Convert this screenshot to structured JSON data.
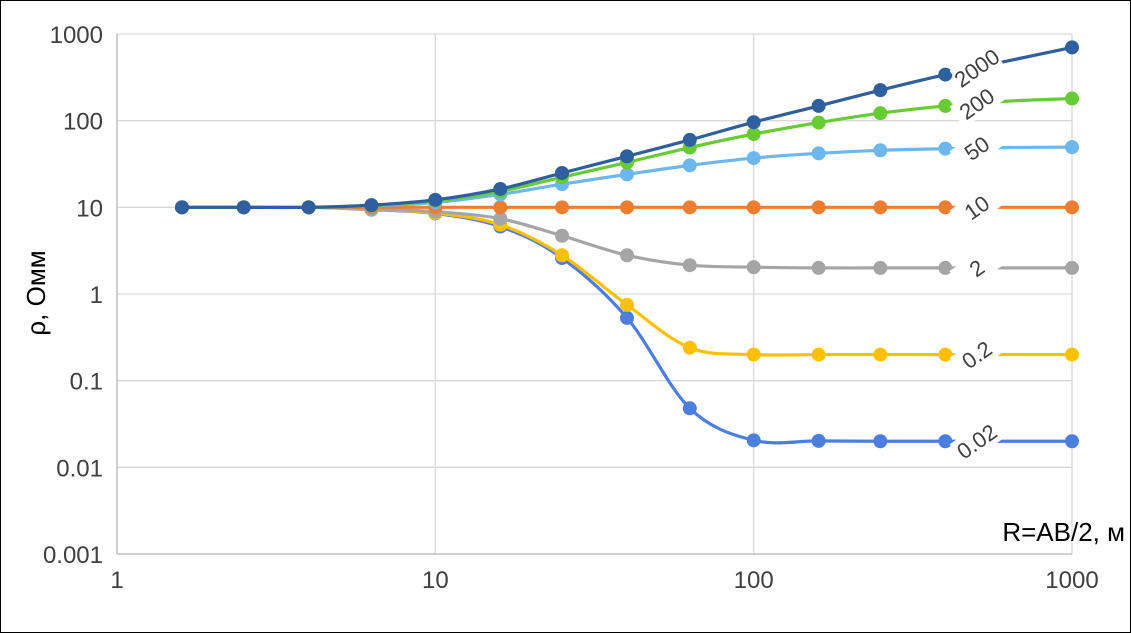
{
  "chart_data": {
    "type": "line",
    "x_scale": "log",
    "y_scale": "log",
    "xlim": [
      1,
      1000
    ],
    "ylim": [
      0.001,
      1000
    ],
    "x_ticks": [
      "1",
      "10",
      "100",
      "1000"
    ],
    "y_ticks": [
      "1000",
      "100",
      "10",
      "1",
      "0.1",
      "0.01",
      "0.001"
    ],
    "xlabel": "R=AB/2, м",
    "ylabel": "ρ, Омм",
    "grid": true,
    "legend": "inline labels at right end of each curve",
    "x": [
      1.6,
      2.5,
      4,
      6.3,
      10,
      16,
      25,
      40,
      63,
      100,
      160,
      250,
      400,
      630,
      1000
    ],
    "series": [
      {
        "name": "2000",
        "color": "#2e5f9e",
        "values": [
          10,
          10,
          10,
          10.6,
          12.2,
          16.3,
          24.9,
          38.8,
          60,
          96,
          148,
          225,
          340,
          490,
          700
        ]
      },
      {
        "name": "200",
        "color": "#66cc33",
        "values": [
          10,
          10,
          10,
          10.5,
          11.8,
          15.3,
          22.3,
          33,
          49,
          70,
          95,
          122,
          148,
          168,
          180
        ]
      },
      {
        "name": "50",
        "color": "#6cb7ee",
        "values": [
          10,
          10,
          10,
          10.4,
          11.4,
          14.1,
          18.5,
          24,
          30.5,
          37,
          42,
          45.5,
          47.5,
          49,
          49.5
        ]
      },
      {
        "name": "10",
        "color": "#ed7d31",
        "values": [
          10,
          10,
          10,
          10,
          10,
          10,
          10,
          10,
          10,
          10,
          10,
          10,
          10,
          10,
          10
        ]
      },
      {
        "name": "2",
        "color": "#a5a5a5",
        "values": [
          10,
          10,
          10,
          9.6,
          8.9,
          7.4,
          4.7,
          2.8,
          2.15,
          2.04,
          2.0,
          2.0,
          2.0,
          2.0,
          2.0
        ]
      },
      {
        "name": "0.2",
        "color": "#ffc000",
        "values": [
          10,
          10,
          10,
          9.5,
          8.6,
          6.3,
          2.8,
          0.75,
          0.24,
          0.2,
          0.2,
          0.2,
          0.2,
          0.2,
          0.2
        ]
      },
      {
        "name": "0.02",
        "color": "#4a7fe0",
        "values": [
          10,
          10,
          10,
          9.4,
          8.5,
          6.0,
          2.6,
          0.53,
          0.048,
          0.0205,
          0.0202,
          0.02,
          0.02,
          0.02,
          0.02
        ]
      }
    ]
  }
}
